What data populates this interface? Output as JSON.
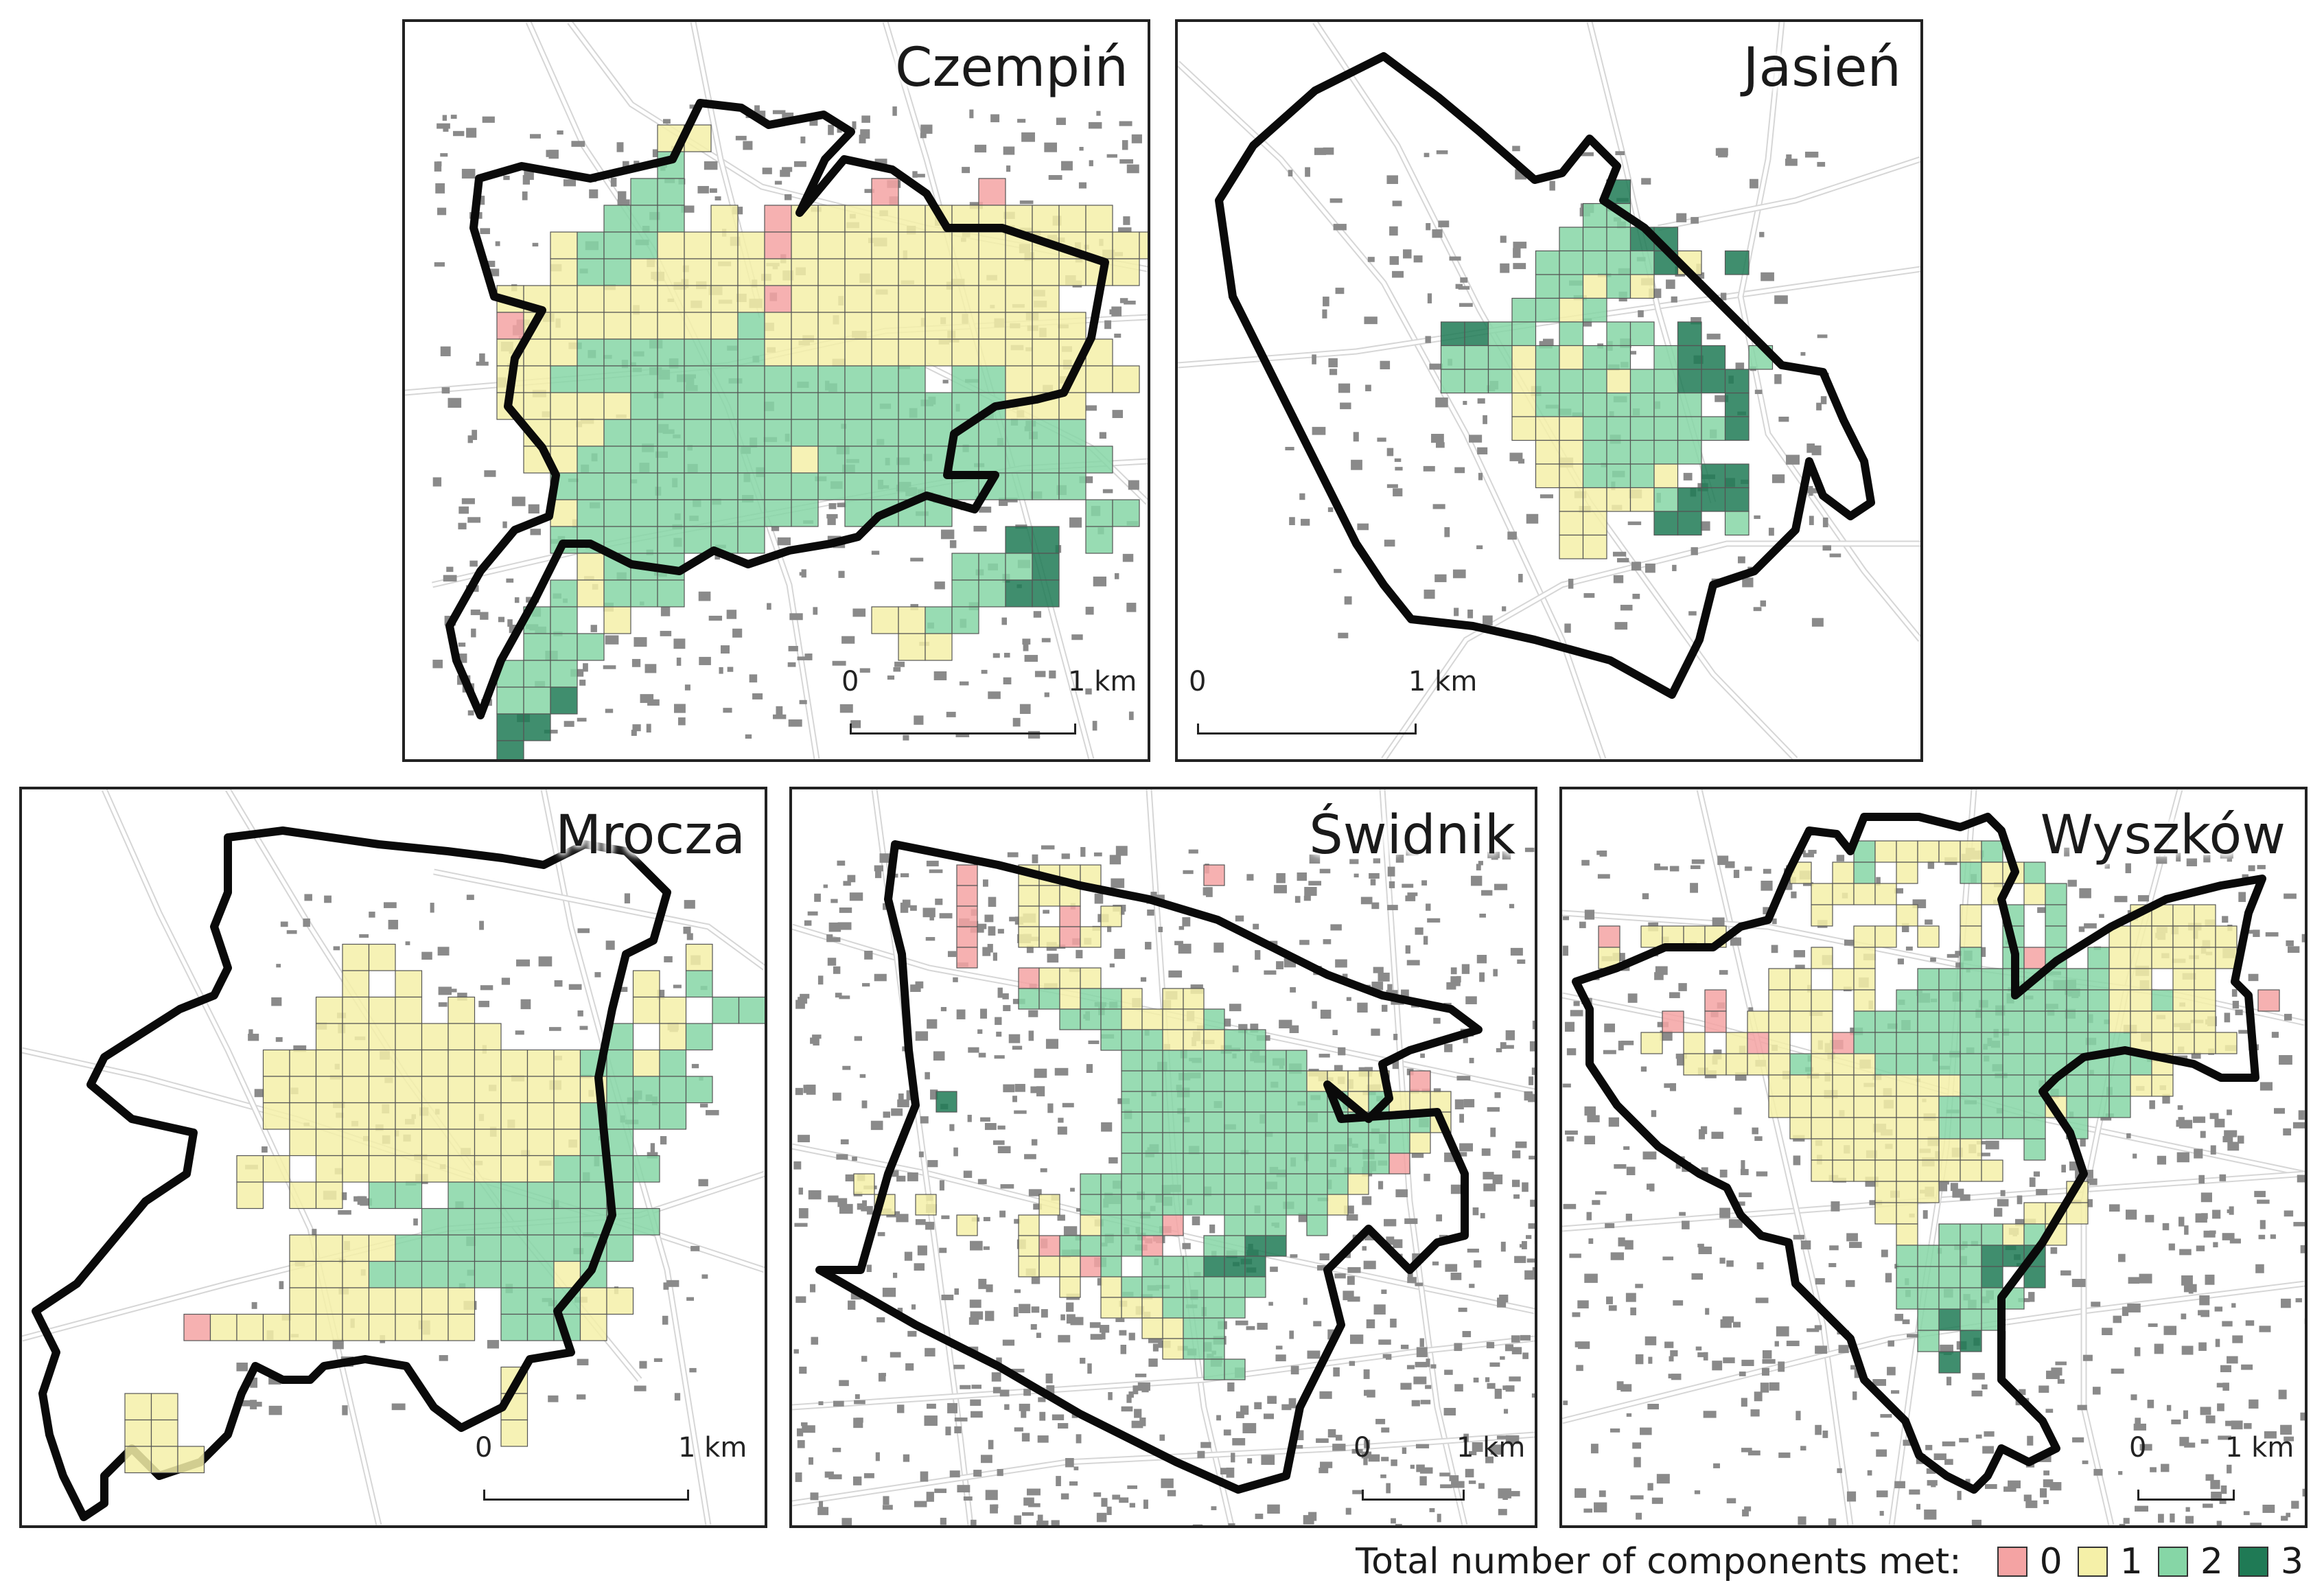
{
  "panels": [
    {
      "name": "Czempiń",
      "scale_zero": "0",
      "scale_km": "1 km"
    },
    {
      "name": "Jasień",
      "scale_zero": "0",
      "scale_km": "1 km"
    },
    {
      "name": "Mrocza",
      "scale_zero": "0",
      "scale_km": "1 km"
    },
    {
      "name": "Świdnik",
      "scale_zero": "0",
      "scale_km": "1 km"
    },
    {
      "name": "Wyszków",
      "scale_zero": "0",
      "scale_km": "1 km"
    }
  ],
  "legend": {
    "title": "Total number of components met:",
    "items": [
      {
        "label": "0",
        "color": "#f4a3a3"
      },
      {
        "label": "1",
        "color": "#f5f0a8"
      },
      {
        "label": "2",
        "color": "#86d6a6"
      },
      {
        "label": "3",
        "color": "#1f7a55"
      }
    ]
  }
}
